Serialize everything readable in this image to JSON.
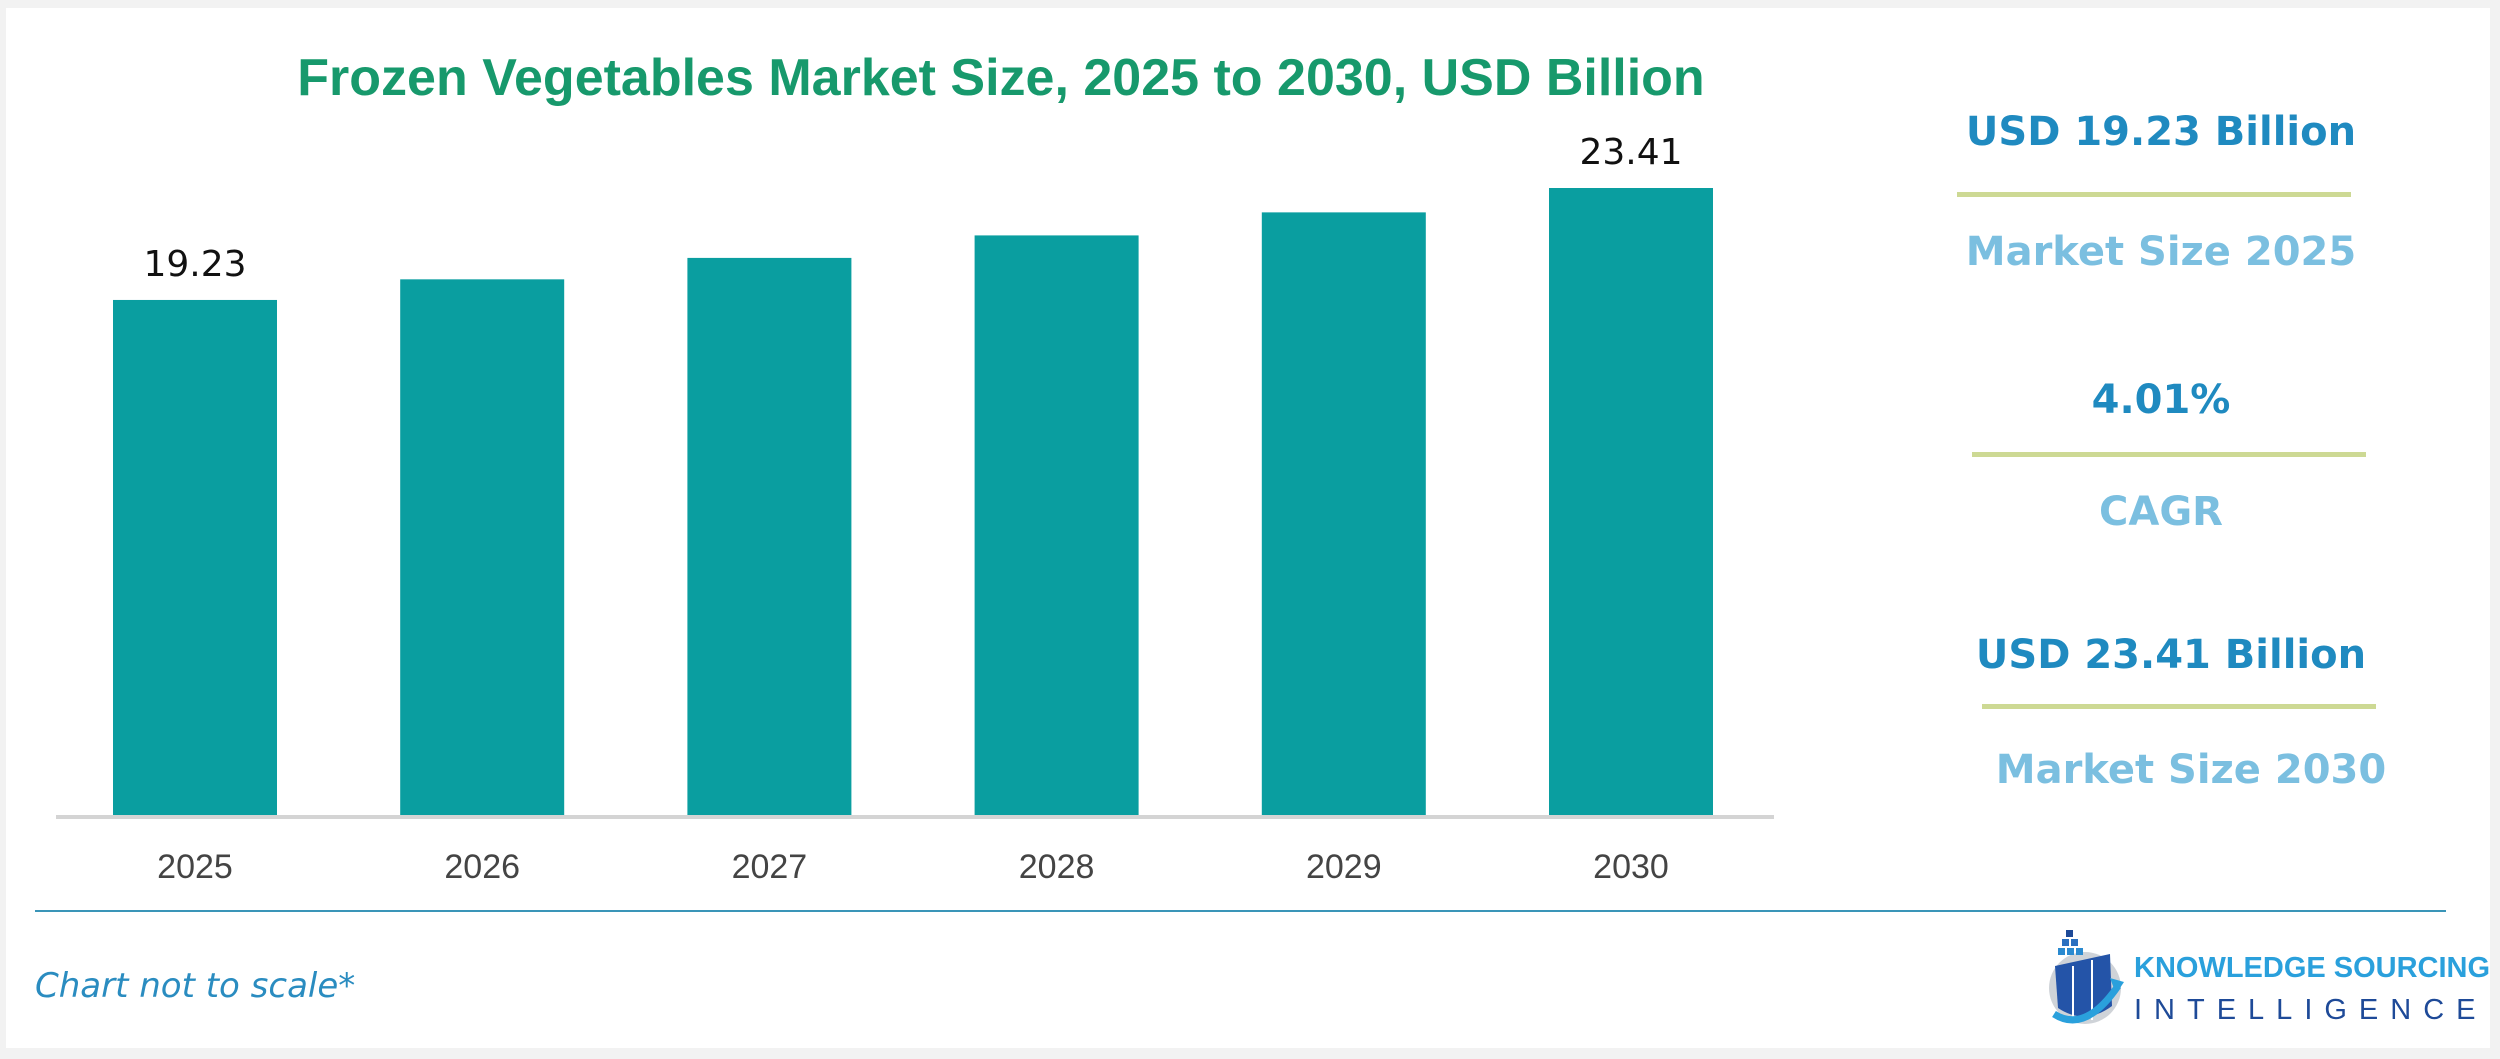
{
  "chart_data": {
    "type": "bar",
    "title": "Frozen Vegetables Market Size, 2025 to 2030, USD Billion",
    "categories": [
      "2025",
      "2026",
      "2027",
      "2028",
      "2029",
      "2030"
    ],
    "values": [
      19.23,
      20.0,
      20.8,
      21.64,
      22.5,
      23.41
    ],
    "data_labels": {
      "2025": "19.23",
      "2030": "23.41"
    },
    "xlabel": "",
    "ylabel": "",
    "ylim": [
      0,
      23.41
    ],
    "grid": false,
    "bar_color": "#0a9ea0",
    "title_color": "#17996c"
  },
  "kpis": [
    {
      "value": "USD 19.23 Billion",
      "label": "Market Size 2025"
    },
    {
      "value": "4.01%",
      "label": "CAGR"
    },
    {
      "value": "USD 23.41 Billion",
      "label": "Market Size 2030"
    }
  ],
  "colors": {
    "kpi_value": "#1f8ac0",
    "kpi_label": "#7bbfe0",
    "kpi_divider": "#cdd994"
  },
  "footnote": "Chart not to scale*",
  "logo": {
    "line1": "KNOWLEDGE SOURCING",
    "line2": "INTELLIGENCE"
  }
}
